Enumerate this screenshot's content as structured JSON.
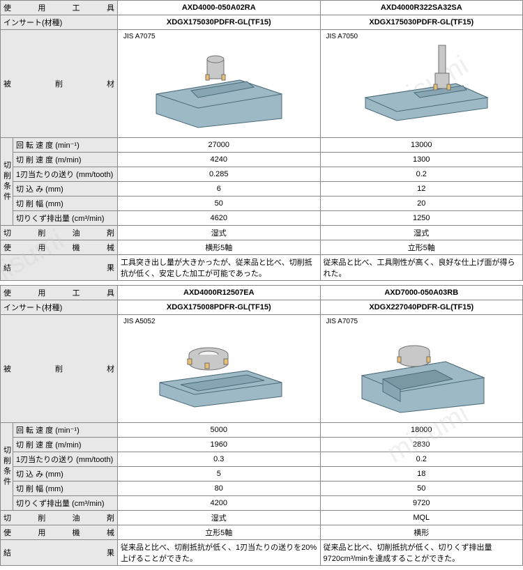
{
  "labels": {
    "tool": "使 用 工 具",
    "insert": "インサート(材種)",
    "material": "被 削 材",
    "conditions": "切削条件",
    "rpm": "回 転 速 度 (min⁻¹)",
    "speed": "切 削 速 度 (m/min)",
    "feed": "1刃当たりの送り (mm/tooth)",
    "depth": "切  込  み (mm)",
    "width": "切  削  幅 (mm)",
    "chip": "切りくず排出量 (cm³/min)",
    "coolant": "切 削 油 剤",
    "machine": "使 用 機 械",
    "result": "結　　　　果"
  },
  "blocks": [
    {
      "left": {
        "tool": "AXD4000-050A02RA",
        "insert": "XDGX175030PDFR-GL(TF15)",
        "material": "JIS A7075",
        "rpm": "27000",
        "speed": "4240",
        "feed": "0.285",
        "depth": "6",
        "width": "50",
        "chip": "4620",
        "coolant": "湿式",
        "machine": "横形5軸",
        "result": "工具突き出し量が大きかったが、従来品と比べ、切削抵抗が低く、安定した加工が可能であった。"
      },
      "right": {
        "tool": "AXD4000R322SA32SA",
        "insert": "XDGX175030PDFR-GL(TF15)",
        "material": "JIS A7050",
        "rpm": "13000",
        "speed": "1300",
        "feed": "0.2",
        "depth": "12",
        "width": "20",
        "chip": "1250",
        "coolant": "湿式",
        "machine": "立形5軸",
        "result": "従来品と比べ、工具剛性が高く、良好な仕上げ面が得られた。"
      }
    },
    {
      "left": {
        "tool": "AXD4000R12507EA",
        "insert": "XDGX175008PDFR-GL(TF15)",
        "material": "JIS A5052",
        "rpm": "5000",
        "speed": "1960",
        "feed": "0.3",
        "depth": "5",
        "width": "80",
        "chip": "4200",
        "coolant": "湿式",
        "machine": "立形5軸",
        "result": "従来品と比べ、切削抵抗が低く、1刃当たりの送りを20%上げることができた。"
      },
      "right": {
        "tool": "AXD7000-050A03RB",
        "insert": "XDGX227040PDFR-GL(TF15)",
        "material": "JIS A7075",
        "rpm": "18000",
        "speed": "2830",
        "feed": "0.2",
        "depth": "18",
        "width": "50",
        "chip": "9720",
        "coolant": "MQL",
        "machine": "横形",
        "result": "従来品と比べ、切削抵抗が低く、切りくず排出量9720cm³/minを達成することができた。"
      }
    }
  ],
  "colors": {
    "workpiece_fill": "#9db9c6",
    "workpiece_stroke": "#4a6a78",
    "tool_fill": "#c8c8c8",
    "tool_stroke": "#707070",
    "insert_fill": "#e8c070"
  },
  "watermark": "misumi"
}
